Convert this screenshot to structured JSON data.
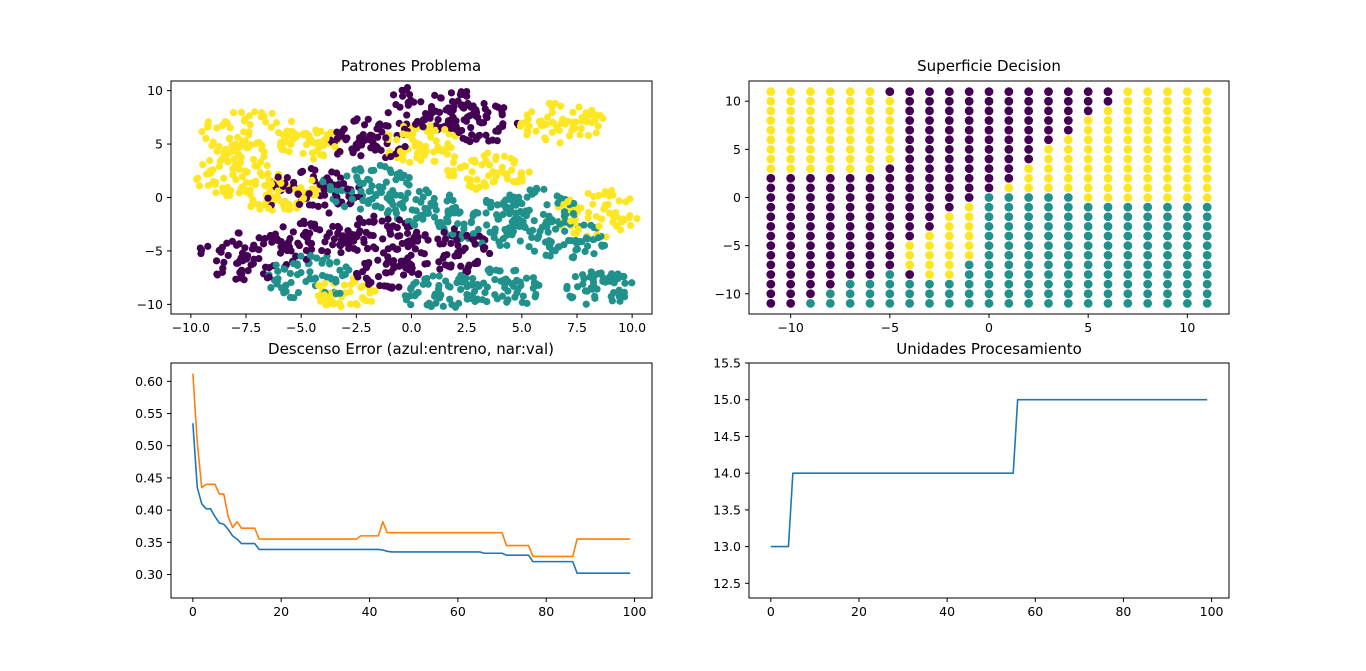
{
  "colors": {
    "purple": "#440154",
    "teal": "#21918c",
    "yellow": "#fde725",
    "blue": "#1f77b4",
    "orange": "#ff7f0e"
  },
  "chart_data": [
    {
      "id": "patrones",
      "type": "scatter",
      "title": "Patrones Problema",
      "xlim": [
        -10.9,
        10.9
      ],
      "ylim": [
        -10.9,
        10.9
      ],
      "xticks": [
        -10.0,
        -7.5,
        -5.0,
        -2.5,
        0.0,
        2.5,
        5.0,
        7.5,
        10.0
      ],
      "xtick_labels": [
        "−10.0",
        "−7.5",
        "−5.0",
        "−2.5",
        "0.0",
        "2.5",
        "5.0",
        "7.5",
        "10.0"
      ],
      "yticks": [
        -10,
        -5,
        0,
        5,
        10
      ],
      "ytick_labels": [
        "−10",
        "−5",
        "0",
        "5",
        "10"
      ],
      "clusters": [
        {
          "class": "yellow",
          "cx": -7.3,
          "cy": 6.0,
          "r": 1.8
        },
        {
          "class": "yellow",
          "cx": -8.0,
          "cy": 2.0,
          "r": 1.5
        },
        {
          "class": "yellow",
          "cx": -6.0,
          "cy": 0.5,
          "r": 1.5
        },
        {
          "class": "yellow",
          "cx": -4.5,
          "cy": 5.0,
          "r": 1.2
        },
        {
          "class": "yellow",
          "cx": 0.5,
          "cy": 5.0,
          "r": 1.5
        },
        {
          "class": "yellow",
          "cx": 3.5,
          "cy": 2.5,
          "r": 1.5
        },
        {
          "class": "yellow",
          "cx": 6.8,
          "cy": 7.0,
          "r": 1.6
        },
        {
          "class": "yellow",
          "cx": 8.5,
          "cy": -1.5,
          "r": 1.8
        },
        {
          "class": "yellow",
          "cx": -3.0,
          "cy": -9.0,
          "r": 1.2
        },
        {
          "class": "purple",
          "cx": -4.5,
          "cy": 0.5,
          "r": 1.8
        },
        {
          "class": "purple",
          "cx": -2.0,
          "cy": 5.5,
          "r": 1.6
        },
        {
          "class": "purple",
          "cx": 1.0,
          "cy": 8.5,
          "r": 1.8
        },
        {
          "class": "purple",
          "cx": 3.0,
          "cy": 7.0,
          "r": 1.6
        },
        {
          "class": "purple",
          "cx": -7.5,
          "cy": -5.5,
          "r": 1.8
        },
        {
          "class": "purple",
          "cx": -4.5,
          "cy": -4.0,
          "r": 1.5
        },
        {
          "class": "purple",
          "cx": -1.5,
          "cy": -3.5,
          "r": 1.5
        },
        {
          "class": "purple",
          "cx": 1.5,
          "cy": -5.0,
          "r": 1.8
        },
        {
          "class": "purple",
          "cx": -1.0,
          "cy": -7.0,
          "r": 1.2
        },
        {
          "class": "teal",
          "cx": -2.0,
          "cy": 1.0,
          "r": 1.7
        },
        {
          "class": "teal",
          "cx": 0.5,
          "cy": -1.0,
          "r": 1.4
        },
        {
          "class": "teal",
          "cx": 3.5,
          "cy": -2.5,
          "r": 1.8
        },
        {
          "class": "teal",
          "cx": 5.5,
          "cy": -1.0,
          "r": 1.6
        },
        {
          "class": "teal",
          "cx": 7.0,
          "cy": -4.0,
          "r": 1.5
        },
        {
          "class": "teal",
          "cx": -4.5,
          "cy": -7.5,
          "r": 1.7
        },
        {
          "class": "teal",
          "cx": 1.5,
          "cy": -9.0,
          "r": 1.5
        },
        {
          "class": "teal",
          "cx": 4.0,
          "cy": -8.5,
          "r": 1.5
        },
        {
          "class": "teal",
          "cx": 8.5,
          "cy": -8.5,
          "r": 1.3
        }
      ]
    },
    {
      "id": "superficie",
      "type": "scatter",
      "title": "Superficie Decision",
      "xlim": [
        -12.1,
        12.1
      ],
      "ylim": [
        -12.1,
        12.1
      ],
      "xticks": [
        -10,
        -5,
        0,
        5,
        10
      ],
      "xtick_labels": [
        "−10",
        "−5",
        "0",
        "5",
        "10"
      ],
      "yticks": [
        -10,
        -5,
        0,
        5,
        10
      ],
      "ytick_labels": [
        "−10",
        "−5",
        "0",
        "5",
        "10"
      ],
      "grid_x": [
        -11,
        -10,
        -9,
        -8,
        -7,
        -6,
        -5,
        -4,
        -3,
        -2,
        -1,
        0,
        1,
        2,
        3,
        4,
        5,
        6,
        7,
        8,
        9,
        10,
        11
      ],
      "grid_y": [
        -11,
        -10,
        -9,
        -8,
        -7,
        -6,
        -5,
        -4,
        -3,
        -2,
        -1,
        0,
        1,
        2,
        3,
        4,
        5,
        6,
        7,
        8,
        9,
        10,
        11
      ],
      "columns": [
        {
          "x": -11,
          "teal_top": -12,
          "purple_top": 2,
          "extra_purple": []
        },
        {
          "x": -10,
          "teal_top": -12,
          "purple_top": 2,
          "extra_purple": []
        },
        {
          "x": -9,
          "teal_top": -11,
          "purple_top": 2,
          "extra_purple": []
        },
        {
          "x": -8,
          "teal_top": -10,
          "purple_top": 2,
          "extra_purple": []
        },
        {
          "x": -7,
          "teal_top": -9,
          "purple_top": 2,
          "extra_purple": []
        },
        {
          "x": -6,
          "teal_top": -9,
          "purple_top": 2,
          "extra_purple": []
        },
        {
          "x": -5,
          "teal_top": -8,
          "purple_top": 3,
          "extra_purple": [
            11
          ]
        },
        {
          "x": -4,
          "teal_top": -9,
          "purple_top": 11,
          "yellow_band": [
            -7,
            -5
          ]
        },
        {
          "x": -3,
          "teal_top": -9,
          "purple_top": 11,
          "yellow_band": [
            -8,
            -4
          ]
        },
        {
          "x": -2,
          "teal_top": -9,
          "purple_top": 11,
          "yellow_band": [
            -8,
            -2
          ]
        },
        {
          "x": -1,
          "teal_top": -7,
          "purple_top": 11,
          "yellow_band": [
            -6,
            -1
          ]
        },
        {
          "x": 0,
          "teal_top": 0,
          "purple_top": 11,
          "yellow_band": []
        },
        {
          "x": 1,
          "teal_top": 0,
          "purple_top": 11,
          "yellow_band": [
            1,
            1
          ]
        },
        {
          "x": 2,
          "teal_top": 0,
          "purple_top": 11,
          "yellow_band": [
            1,
            3
          ]
        },
        {
          "x": 3,
          "teal_top": 0,
          "purple_top": 11,
          "yellow_band": [
            1,
            5
          ]
        },
        {
          "x": 4,
          "teal_top": 0,
          "purple_top": 11,
          "yellow_band": [
            1,
            6
          ]
        },
        {
          "x": 5,
          "teal_top": -1,
          "purple_top": 11,
          "yellow_band": [
            0,
            8
          ]
        },
        {
          "x": 6,
          "teal_top": -1,
          "purple_top": 11,
          "yellow_band": [
            0,
            9
          ]
        },
        {
          "x": 7,
          "teal_top": -1,
          "purple_top": -12,
          "yellow_band": []
        },
        {
          "x": 8,
          "teal_top": -1,
          "purple_top": -12,
          "yellow_band": []
        },
        {
          "x": 9,
          "teal_top": -1,
          "purple_top": -12,
          "yellow_band": []
        },
        {
          "x": 10,
          "teal_top": -1,
          "purple_top": -12,
          "yellow_band": []
        },
        {
          "x": 11,
          "teal_top": -1,
          "purple_top": -12,
          "yellow_band": []
        }
      ]
    },
    {
      "id": "descenso",
      "type": "line",
      "title": "Descenso Error (azul:entreno, nar:val)",
      "xlim": [
        -4.95,
        103.95
      ],
      "ylim": [
        0.2635,
        0.6285
      ],
      "xticks": [
        0,
        20,
        40,
        60,
        80,
        100
      ],
      "xtick_labels": [
        "0",
        "20",
        "40",
        "60",
        "80",
        "100"
      ],
      "yticks": [
        0.3,
        0.35,
        0.4,
        0.45,
        0.5,
        0.55,
        0.6
      ],
      "ytick_labels": [
        "0.30",
        "0.35",
        "0.40",
        "0.45",
        "0.50",
        "0.55",
        "0.60"
      ],
      "series": [
        {
          "color": "blue",
          "x": [
            0,
            1,
            2,
            3,
            4,
            5,
            6,
            7,
            8,
            9,
            10,
            11,
            12,
            13,
            14,
            15,
            16,
            17,
            18,
            19,
            20,
            21,
            22,
            23,
            24,
            25,
            26,
            27,
            28,
            29,
            30,
            31,
            32,
            33,
            34,
            35,
            36,
            37,
            38,
            39,
            40,
            41,
            42,
            43,
            44,
            45,
            46,
            47,
            48,
            49,
            50,
            51,
            52,
            53,
            54,
            55,
            56,
            57,
            58,
            59,
            60,
            61,
            62,
            63,
            64,
            65,
            66,
            67,
            68,
            69,
            70,
            71,
            72,
            73,
            74,
            75,
            76,
            77,
            78,
            79,
            80,
            81,
            82,
            83,
            84,
            85,
            86,
            87,
            88,
            89,
            90,
            91,
            92,
            93,
            94,
            95,
            96,
            97,
            98,
            99
          ],
          "values": [
            0.535,
            0.435,
            0.41,
            0.402,
            0.402,
            0.39,
            0.38,
            0.378,
            0.37,
            0.36,
            0.355,
            0.348,
            0.348,
            0.348,
            0.348,
            0.339,
            0.339,
            0.339,
            0.339,
            0.339,
            0.339,
            0.339,
            0.339,
            0.339,
            0.339,
            0.339,
            0.339,
            0.339,
            0.339,
            0.339,
            0.339,
            0.339,
            0.339,
            0.339,
            0.339,
            0.339,
            0.339,
            0.339,
            0.339,
            0.339,
            0.339,
            0.339,
            0.339,
            0.338,
            0.336,
            0.335,
            0.335,
            0.335,
            0.335,
            0.335,
            0.335,
            0.335,
            0.335,
            0.335,
            0.335,
            0.335,
            0.335,
            0.335,
            0.335,
            0.335,
            0.335,
            0.335,
            0.335,
            0.335,
            0.335,
            0.335,
            0.333,
            0.333,
            0.333,
            0.333,
            0.333,
            0.33,
            0.33,
            0.33,
            0.33,
            0.33,
            0.33,
            0.32,
            0.32,
            0.32,
            0.32,
            0.32,
            0.32,
            0.32,
            0.32,
            0.32,
            0.32,
            0.302,
            0.302,
            0.302,
            0.302,
            0.302,
            0.302,
            0.302,
            0.302,
            0.302,
            0.302,
            0.302,
            0.302,
            0.302
          ]
        },
        {
          "color": "orange",
          "x": [
            0,
            1,
            2,
            3,
            4,
            5,
            6,
            7,
            8,
            9,
            10,
            11,
            12,
            13,
            14,
            15,
            16,
            17,
            18,
            19,
            20,
            21,
            22,
            23,
            24,
            25,
            26,
            27,
            28,
            29,
            30,
            31,
            32,
            33,
            34,
            35,
            36,
            37,
            38,
            39,
            40,
            41,
            42,
            43,
            44,
            45,
            46,
            47,
            48,
            49,
            50,
            51,
            52,
            53,
            54,
            55,
            56,
            57,
            58,
            59,
            60,
            61,
            62,
            63,
            64,
            65,
            66,
            67,
            68,
            69,
            70,
            71,
            72,
            73,
            74,
            75,
            76,
            77,
            78,
            79,
            80,
            81,
            82,
            83,
            84,
            85,
            86,
            87,
            88,
            89,
            90,
            91,
            92,
            93,
            94,
            95,
            96,
            97,
            98,
            99
          ],
          "values": [
            0.612,
            0.505,
            0.435,
            0.44,
            0.44,
            0.44,
            0.425,
            0.425,
            0.39,
            0.373,
            0.382,
            0.372,
            0.372,
            0.372,
            0.372,
            0.355,
            0.355,
            0.355,
            0.355,
            0.355,
            0.355,
            0.355,
            0.355,
            0.355,
            0.355,
            0.355,
            0.355,
            0.355,
            0.355,
            0.355,
            0.355,
            0.355,
            0.355,
            0.355,
            0.355,
            0.355,
            0.355,
            0.355,
            0.36,
            0.36,
            0.36,
            0.36,
            0.36,
            0.382,
            0.365,
            0.365,
            0.365,
            0.365,
            0.365,
            0.365,
            0.365,
            0.365,
            0.365,
            0.365,
            0.365,
            0.365,
            0.365,
            0.365,
            0.365,
            0.365,
            0.365,
            0.365,
            0.365,
            0.365,
            0.365,
            0.365,
            0.365,
            0.365,
            0.365,
            0.365,
            0.365,
            0.345,
            0.345,
            0.345,
            0.345,
            0.345,
            0.345,
            0.328,
            0.328,
            0.328,
            0.328,
            0.328,
            0.328,
            0.328,
            0.328,
            0.328,
            0.328,
            0.355,
            0.355,
            0.355,
            0.355,
            0.355,
            0.355,
            0.355,
            0.355,
            0.355,
            0.355,
            0.355,
            0.355,
            0.355
          ]
        }
      ]
    },
    {
      "id": "unidades",
      "type": "line",
      "title": "Unidades Procesamiento",
      "xlim": [
        -4.95,
        103.95
      ],
      "ylim": [
        12.3,
        15.5
      ],
      "xticks": [
        0,
        20,
        40,
        60,
        80,
        100
      ],
      "xtick_labels": [
        "0",
        "20",
        "40",
        "60",
        "80",
        "100"
      ],
      "yticks": [
        12.5,
        13.0,
        13.5,
        14.0,
        14.5,
        15.0,
        15.5
      ],
      "ytick_labels": [
        "12.5",
        "13.0",
        "13.5",
        "14.0",
        "14.5",
        "15.0",
        "15.5"
      ],
      "series": [
        {
          "color": "blue",
          "x": [
            0,
            4,
            5,
            55,
            56,
            99
          ],
          "values": [
            13,
            13,
            14,
            14,
            15,
            15
          ]
        }
      ]
    }
  ]
}
